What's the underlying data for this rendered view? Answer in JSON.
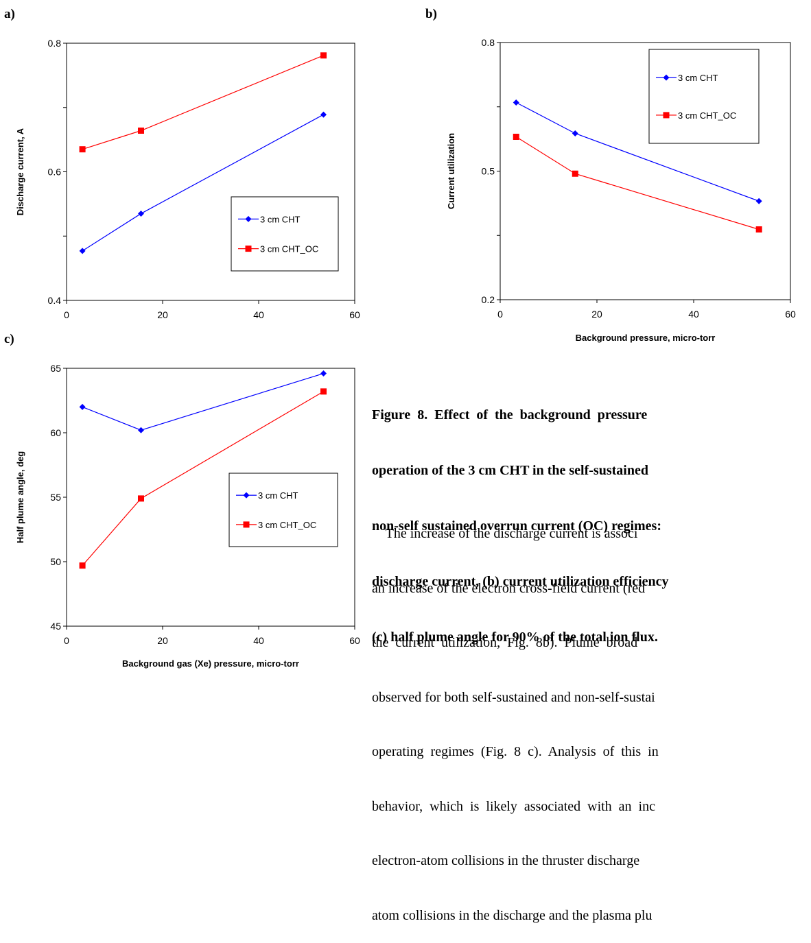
{
  "panels": {
    "a": "a)",
    "b": "b)",
    "c": "c)"
  },
  "colors": {
    "series1": "#0000ff",
    "series2": "#ff0000"
  },
  "chart_data": [
    {
      "type": "line",
      "id": "a",
      "title": "",
      "xlabel": "",
      "ylabel": "Discharge current, A",
      "xlim": [
        0,
        60
      ],
      "ylim": [
        0.4,
        0.8
      ],
      "xticks": [
        0,
        20,
        40,
        60
      ],
      "yticks": [
        0.4,
        0.6,
        0.8
      ],
      "xtick_labels": [
        "0",
        "20",
        "40",
        "60"
      ],
      "ytick_labels": [
        "0.4",
        "0.6",
        "0.8"
      ],
      "legend": "center-right",
      "series": [
        {
          "name": "3 cm CHT",
          "marker": "diamond",
          "x": [
            3.3,
            15.5,
            53.5
          ],
          "y": [
            0.477,
            0.535,
            0.689
          ]
        },
        {
          "name": "3 cm CHT_OC",
          "marker": "square",
          "x": [
            3.3,
            15.5,
            53.5
          ],
          "y": [
            0.635,
            0.664,
            0.781
          ]
        }
      ]
    },
    {
      "type": "line",
      "id": "b",
      "title": "",
      "xlabel": "Background pressure, micro-torr",
      "ylabel": "Current utilization",
      "xlim": [
        0,
        60
      ],
      "ylim": [
        0.2,
        0.8
      ],
      "xticks": [
        0,
        20,
        40,
        60
      ],
      "yticks": [
        0.2,
        0.5,
        0.8
      ],
      "xtick_labels": [
        "0",
        "20",
        "40",
        "60"
      ],
      "ytick_labels": [
        "0.2",
        "0.5",
        "0.8"
      ],
      "legend": "top-right",
      "series": [
        {
          "name": "3 cm CHT",
          "marker": "diamond",
          "x": [
            3.3,
            15.5,
            53.5
          ],
          "y": [
            0.66,
            0.588,
            0.43
          ]
        },
        {
          "name": "3 cm CHT_OC",
          "marker": "square",
          "x": [
            3.3,
            15.5,
            53.5
          ],
          "y": [
            0.58,
            0.494,
            0.364
          ]
        }
      ]
    },
    {
      "type": "line",
      "id": "c",
      "title": "",
      "xlabel": "Background gas (Xe) pressure, micro-torr",
      "ylabel": "Half plume angle, deg",
      "xlim": [
        0,
        60
      ],
      "ylim": [
        45,
        65
      ],
      "xticks": [
        0,
        20,
        40,
        60
      ],
      "yticks": [
        45,
        50,
        55,
        60,
        65
      ],
      "xtick_labels": [
        "0",
        "20",
        "40",
        "60"
      ],
      "ytick_labels": [
        "45",
        "50",
        "55",
        "60",
        "65"
      ],
      "legend": "center-right",
      "series": [
        {
          "name": "3 cm CHT",
          "marker": "diamond",
          "x": [
            3.3,
            15.5,
            53.5
          ],
          "y": [
            62.0,
            60.2,
            64.6
          ]
        },
        {
          "name": "3 cm CHT_OC",
          "marker": "square",
          "x": [
            3.3,
            15.5,
            53.5
          ],
          "y": [
            49.7,
            54.9,
            63.2
          ]
        }
      ]
    }
  ],
  "caption": {
    "lines": [
      "Figure  8.  Effect  of  the  background  pressure",
      "operation of the 3 cm CHT in the self-sustained",
      "non-self sustained overrun current (OC) regimes:",
      "discharge current, (b) current utilization efficiency",
      "(c) half plume angle for 90% of the total ion flux."
    ]
  },
  "body": {
    "lines": [
      "    The increase of the discharge current is associ",
      "an increase of the electron cross-field current (red",
      "the  current  utilization,  Fig.  8b).  Plume  broad",
      "observed for both self-sustained and non-self-sustai",
      "operating  regimes  (Fig.  8  c).  Analysis  of  this  in",
      "behavior,  which  is  likely  associated  with  an  inc",
      "electron-atom collisions in the thruster discharge",
      "atom collisions in the discharge and the plasma plu"
    ]
  }
}
